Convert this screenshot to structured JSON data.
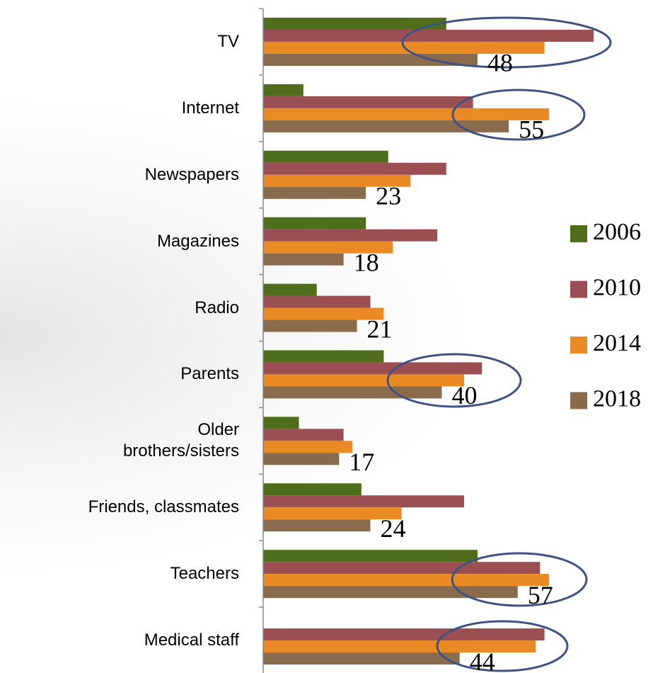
{
  "chart_data": {
    "type": "bar",
    "orientation": "horizontal",
    "categories": [
      "TV",
      "Internet",
      "Newspapers",
      "Magazines",
      "Radio",
      "Parents",
      "Older\nbrothers/sisters",
      "Friends, classmates",
      "Teachers",
      "Medical staff"
    ],
    "series": [
      {
        "name": "2006",
        "color": "#4e6e1c",
        "values": [
          41,
          9,
          28,
          23,
          12,
          27,
          8,
          22,
          48,
          null
        ]
      },
      {
        "name": "2010",
        "color": "#9c4f52",
        "values": [
          74,
          47,
          41,
          39,
          24,
          49,
          18,
          45,
          62,
          63
        ]
      },
      {
        "name": "2014",
        "color": "#e98a25",
        "values": [
          63,
          64,
          33,
          29,
          27,
          45,
          20,
          31,
          64,
          61
        ]
      },
      {
        "name": "2018",
        "color": "#8a6b4b",
        "values": [
          48,
          55,
          23,
          18,
          21,
          40,
          17,
          24,
          57,
          44
        ],
        "show_labels": true
      }
    ],
    "xlim": [
      0,
      90
    ]
  }
}
